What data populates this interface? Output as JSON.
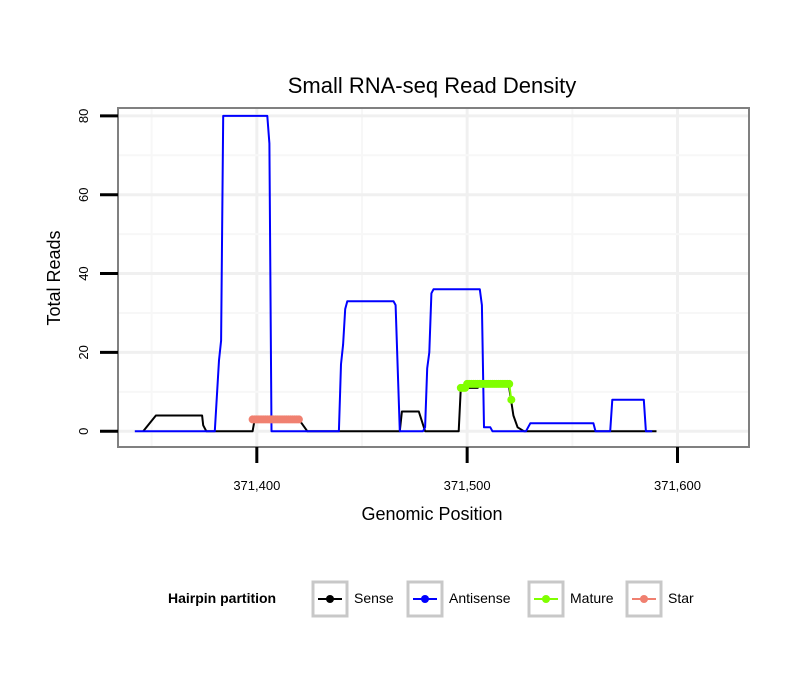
{
  "chart_data": {
    "type": "line",
    "title": "Small RNA-seq Read Density",
    "xlabel": "Genomic Position",
    "ylabel": "Total Reads",
    "xlim": [
      371334,
      371634
    ],
    "ylim": [
      -4,
      82
    ],
    "x_ticks": [
      371400,
      371500,
      371600
    ],
    "x_tick_labels": [
      "371,400",
      "371,500",
      "371,600"
    ],
    "y_ticks": [
      0,
      20,
      40,
      60,
      80
    ],
    "y_tick_labels": [
      "0",
      "20",
      "40",
      "60",
      "80"
    ],
    "grid": true,
    "legend": {
      "title": "Hairpin partition",
      "position": "bottom",
      "entries": [
        "Sense",
        "Antisense",
        "Mature",
        "Star"
      ]
    },
    "series": [
      {
        "name": "Sense",
        "color": "#000000",
        "points": false,
        "x": [
          371346,
          371352,
          371374,
          371374.5,
          371376,
          371398,
          371399,
          371420,
          371424,
          371468,
          371469,
          371477,
          371480,
          371496,
          371497,
          371505,
          371506,
          371519,
          371520,
          371522,
          371524,
          371527,
          371590
        ],
        "y": [
          0,
          4,
          4,
          1.5,
          0,
          0,
          3,
          3,
          0,
          0,
          5,
          5,
          0,
          0,
          11,
          11,
          12,
          12,
          11,
          4,
          1,
          0,
          0
        ]
      },
      {
        "name": "Antisense",
        "color": "#0000ff",
        "points": false,
        "x": [
          371342,
          371380,
          371382,
          371383,
          371384,
          371385,
          371405,
          371406,
          371407,
          371439,
          371440,
          371441,
          371442,
          371443,
          371444,
          371465,
          371466,
          371468,
          371479,
          371480,
          371481,
          371482,
          371483,
          371484,
          371506,
          371507,
          371508,
          371511,
          371512,
          371513,
          371514,
          371528,
          371530,
          371560,
          371561,
          371568,
          371569,
          371584,
          371585,
          371588
        ],
        "y": [
          0,
          0,
          18,
          23,
          80,
          80,
          80,
          73,
          0,
          0,
          17,
          22,
          31,
          33,
          33,
          33,
          32,
          0,
          0,
          1,
          16,
          20,
          35,
          36,
          36,
          32,
          1,
          1,
          0,
          0,
          0,
          0,
          2,
          2,
          0,
          0,
          8,
          8,
          0,
          0
        ],
        "extra": []
      },
      {
        "name": "Mature",
        "color": "#80ff00",
        "points": true,
        "x": [
          371497,
          371498,
          371499,
          371500,
          371501,
          371502,
          371503,
          371504,
          371505,
          371506,
          371507,
          371508,
          371509,
          371510,
          371511,
          371512,
          371513,
          371514,
          371515,
          371516,
          371517,
          371518,
          371519,
          371520,
          371521
        ],
        "y": [
          11,
          11,
          11,
          12,
          12,
          12,
          12,
          12,
          12,
          12,
          12,
          12,
          12,
          12,
          12,
          12,
          12,
          12,
          12,
          12,
          12,
          12,
          12,
          12,
          8
        ]
      },
      {
        "name": "Star",
        "color": "#f08070",
        "points": true,
        "x": [
          371398,
          371399,
          371400,
          371401,
          371402,
          371403,
          371404,
          371405,
          371406,
          371407,
          371408,
          371409,
          371410,
          371411,
          371412,
          371413,
          371414,
          371415,
          371416,
          371417,
          371418,
          371419,
          371420
        ],
        "y": [
          3,
          3,
          3,
          3,
          3,
          3,
          3,
          3,
          3,
          3,
          3,
          3,
          3,
          3,
          3,
          3,
          3,
          3,
          3,
          3,
          3,
          3,
          3
        ]
      }
    ]
  }
}
